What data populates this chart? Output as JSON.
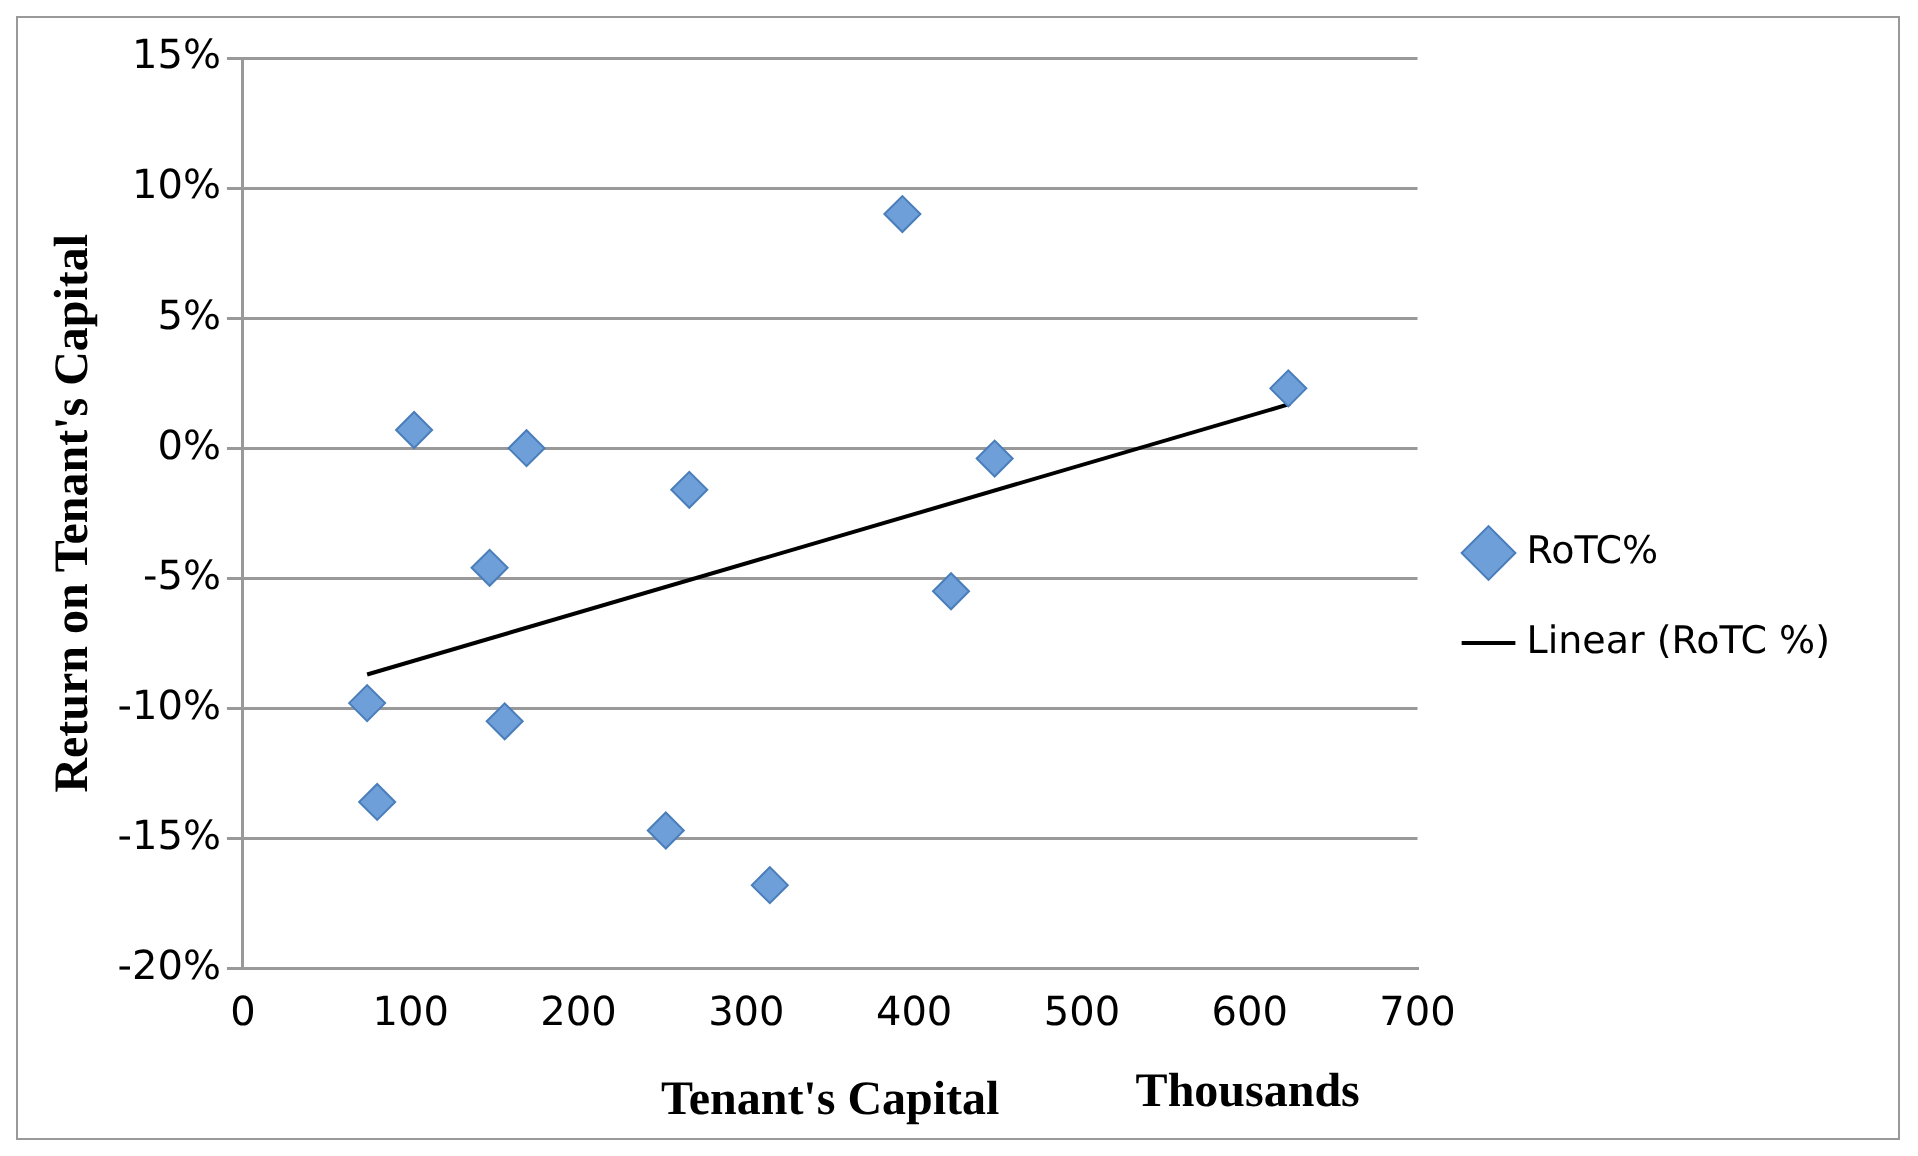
{
  "chart_data": {
    "type": "scatter",
    "xlabel": "Tenant's Capital",
    "ylabel": "Return on Tenant's Capital",
    "annotations": [
      "Thousands"
    ],
    "xlim": [
      0,
      700
    ],
    "xticks": [
      0,
      100,
      200,
      300,
      400,
      500,
      600,
      700
    ],
    "ylim": [
      -20,
      15
    ],
    "yticks": [
      {
        "value": -20,
        "label": "-20%"
      },
      {
        "value": -15,
        "label": "-15%"
      },
      {
        "value": -10,
        "label": "-10%"
      },
      {
        "value": -5,
        "label": "-5%"
      },
      {
        "value": 0,
        "label": "0%"
      },
      {
        "value": 5,
        "label": "5%"
      },
      {
        "value": 10,
        "label": "10%"
      },
      {
        "value": 15,
        "label": "15%"
      }
    ],
    "grid": "y",
    "legend": "right",
    "marker": "diamond",
    "series": [
      {
        "name": "RoTC%",
        "type": "scatter",
        "color": "#6f9fd8",
        "x": [
          102,
          169,
          266,
          147,
          74,
          156,
          80,
          252,
          314,
          393,
          448,
          422,
          623
        ],
        "values": [
          0.7,
          0,
          -1.6,
          -4.6,
          -9.8,
          -10.5,
          -13.6,
          -14.7,
          -16.8,
          9.0,
          -0.4,
          -5.5,
          2.3
        ]
      },
      {
        "name": "Linear (RoTC %)",
        "type": "line",
        "color": "#000000",
        "x": [
          74,
          624
        ],
        "values": [
          -8.7,
          1.7
        ],
        "marker": "none",
        "line_style": "solid"
      }
    ]
  }
}
